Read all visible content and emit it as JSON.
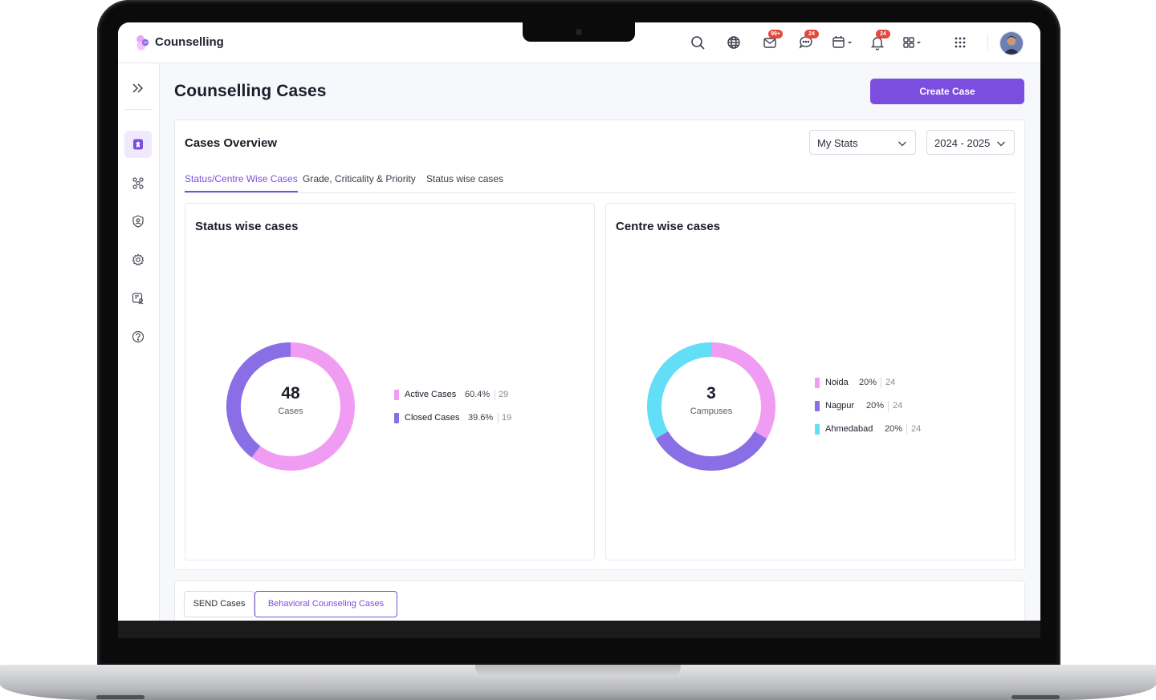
{
  "app": {
    "title": "Counselling"
  },
  "topbar": {
    "icons": [
      {
        "name": "search-icon"
      },
      {
        "name": "globe-icon"
      },
      {
        "name": "mail-icon",
        "badge": "99+"
      },
      {
        "name": "chat-icon",
        "badge": "24"
      },
      {
        "name": "calendar-icon"
      },
      {
        "name": "bell-icon",
        "badge": "24"
      },
      {
        "name": "apps-icon"
      },
      {
        "name": "grid-dots-icon"
      }
    ]
  },
  "sidebar": {
    "items": [
      {
        "name": "sidebar-item-cases",
        "icon": "case-badge-icon",
        "active": true
      },
      {
        "name": "sidebar-item-network",
        "icon": "network-icon"
      },
      {
        "name": "sidebar-item-security",
        "icon": "shield-user-icon"
      },
      {
        "name": "sidebar-item-settings",
        "icon": "gear-icon"
      },
      {
        "name": "sidebar-item-reports",
        "icon": "report-user-icon"
      },
      {
        "name": "sidebar-item-help",
        "icon": "help-icon"
      }
    ]
  },
  "page": {
    "title": "Counselling Cases",
    "create_button": "Create Case"
  },
  "overview": {
    "title": "Cases Overview",
    "stats_select": "My Stats",
    "year_select": "2024 - 2025",
    "tabs": [
      {
        "label": "Status/Centre Wise Cases",
        "active": true
      },
      {
        "label": "Grade, Criticality & Priority"
      },
      {
        "label": "Status wise cases"
      }
    ]
  },
  "status_card": {
    "title": "Status wise cases",
    "center_value": "48",
    "center_label": "Cases",
    "legend": [
      {
        "name": "Active Cases",
        "pct": "60.4%",
        "count": "29",
        "color": "#f09cf2"
      },
      {
        "name": "Closed Cases",
        "pct": "39.6%",
        "count": "19",
        "color": "#8a6ee6"
      }
    ]
  },
  "centre_card": {
    "title": "Centre wise cases",
    "center_value": "3",
    "center_label": "Campuses",
    "legend": [
      {
        "name": "Noida",
        "pct": "20%",
        "count": "24",
        "color": "#f09cf2"
      },
      {
        "name": "Nagpur",
        "pct": "20%",
        "count": "24",
        "color": "#8a6ee6"
      },
      {
        "name": "Ahmedabad",
        "pct": "20%",
        "count": "24",
        "color": "#62def7"
      }
    ]
  },
  "bottom": {
    "tabs": [
      {
        "label": "SEND Cases"
      },
      {
        "label": "Behavioral Counseling Cases",
        "active": true
      }
    ]
  },
  "chart_data": [
    {
      "type": "pie",
      "title": "Status wise cases",
      "categories": [
        "Active Cases",
        "Closed Cases"
      ],
      "values": [
        60.4,
        39.6
      ],
      "counts": [
        29,
        19
      ],
      "colors": [
        "#f09cf2",
        "#8a6ee6"
      ],
      "total": 48
    },
    {
      "type": "pie",
      "title": "Centre wise cases",
      "categories": [
        "Noida",
        "Nagpur",
        "Ahmedabad"
      ],
      "values": [
        20,
        20,
        20
      ],
      "counts": [
        24,
        24,
        24
      ],
      "colors": [
        "#f09cf2",
        "#8a6ee6",
        "#62def7"
      ],
      "total": 3
    }
  ]
}
